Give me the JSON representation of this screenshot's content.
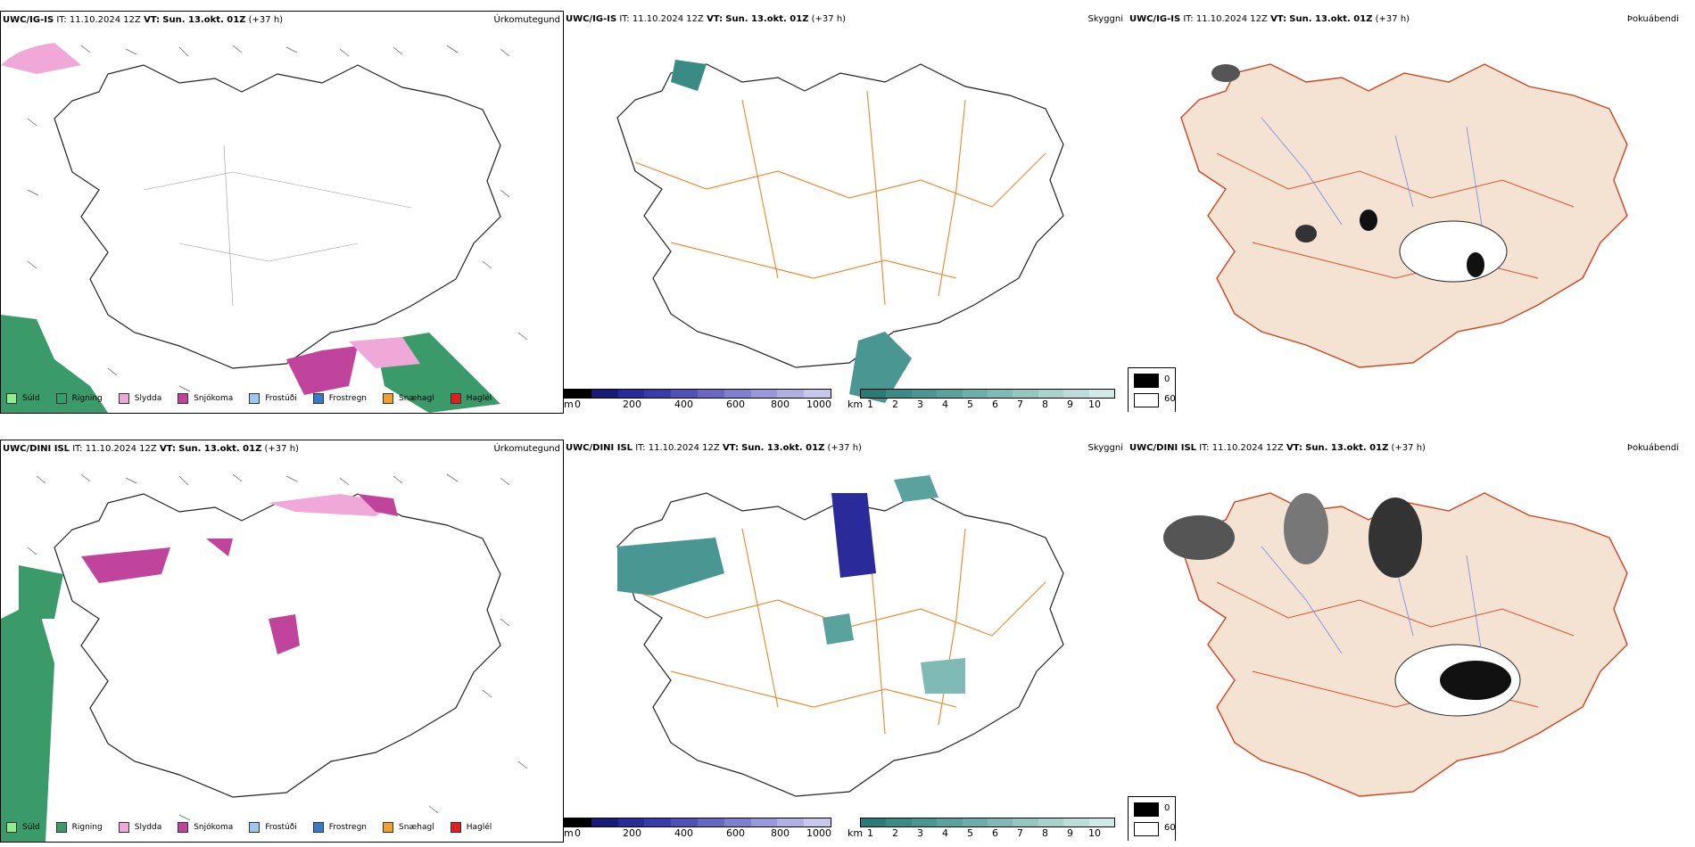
{
  "rows": [
    {
      "model": "UWC/IG-IS",
      "it_label": "IT:",
      "it_value": "11.10.2024 12Z",
      "vt_label": "VT:",
      "vt_value": "Sun. 13.okt. 01Z",
      "lead": "(+37 h)",
      "left_title": "Úrkomutegund",
      "mid_title": "Skyggni",
      "right_title": "Þokuábendi"
    },
    {
      "model": "UWC/DINI ISL",
      "it_label": "IT:",
      "it_value": "11.10.2024 12Z",
      "vt_label": "VT:",
      "vt_value": "Sun. 13.okt. 01Z",
      "lead": "(+37 h)",
      "left_title": "Úrkomutegund",
      "mid_title": "Skyggni",
      "right_title": "Þokuábendi"
    }
  ],
  "precip_legend": [
    {
      "label": "Súld",
      "color": "#90ee90"
    },
    {
      "label": "Rigning",
      "color": "#3a9a6a"
    },
    {
      "label": "Slydda",
      "color": "#f0a8d8"
    },
    {
      "label": "Snjókoma",
      "color": "#c0449c"
    },
    {
      "label": "Frostúði",
      "color": "#9ec8f0"
    },
    {
      "label": "Frostregn",
      "color": "#3a78c8"
    },
    {
      "label": "Snæhagl",
      "color": "#f0a030"
    },
    {
      "label": "Haglél",
      "color": "#e02020"
    }
  ],
  "ceiling_scale": {
    "unit": "m",
    "ticks": [
      "0",
      "200",
      "400",
      "600",
      "800",
      "1000"
    ],
    "colors": [
      "#000000",
      "#1a1a7a",
      "#2a2a9a",
      "#3a3aaa",
      "#5050b8",
      "#6868c4",
      "#8080d0",
      "#9898dc",
      "#b0b0e4",
      "#c8c8ee"
    ]
  },
  "visibility_scale": {
    "unit": "km",
    "ticks": [
      "1",
      "2",
      "3",
      "4",
      "5",
      "6",
      "7",
      "8",
      "9",
      "10"
    ],
    "colors": [
      "#2a7a78",
      "#3a8a86",
      "#4a9692",
      "#5aa29e",
      "#6caeaa",
      "#80bab6",
      "#94c6c2",
      "#a8d2ce",
      "#bcdeda",
      "#d0eae8"
    ]
  },
  "fog_legend": [
    {
      "label": "0",
      "color": "#000000"
    },
    {
      "label": "60",
      "color": "#ffffff"
    }
  ]
}
